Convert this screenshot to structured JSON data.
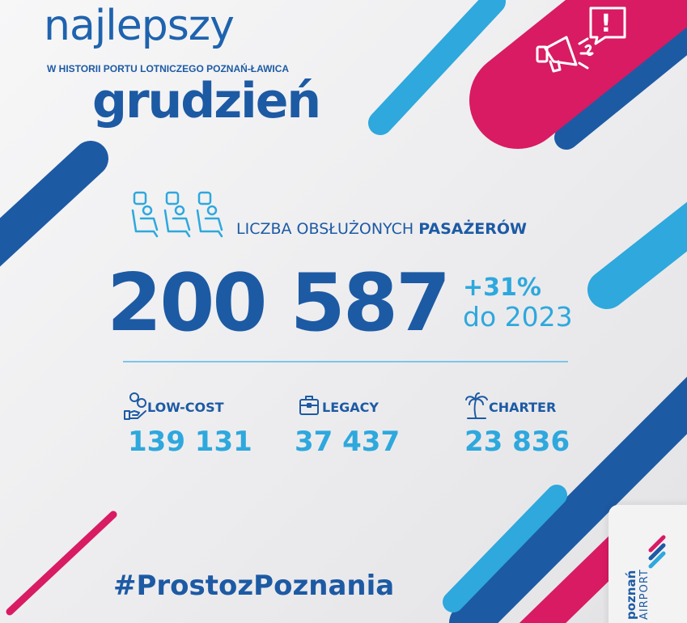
{
  "header": {
    "title": "najlepszy",
    "subtitle": "W HISTORII PORTU LOTNICZEGO POZNAŃ-ŁAWICA",
    "month": "grudzień"
  },
  "passengers": {
    "label_prefix": "LICZBA OBSŁUŻONYCH ",
    "label_emphasis": "PASAŻERÓW",
    "total": "200 587",
    "change": "+31%",
    "change_note": "do 2023",
    "icon": "airplane-seats-icon"
  },
  "categories": [
    {
      "label": "LOW-COST",
      "value": "139 131",
      "icon": "hand-coins-icon"
    },
    {
      "label": "LEGACY",
      "value": "37 437",
      "icon": "briefcase-icon"
    },
    {
      "label": "CHARTER",
      "value": "23 836",
      "icon": "palm-tree-icon"
    }
  ],
  "badge": {
    "icon": "megaphone-icon",
    "mark": "!"
  },
  "hashtag": "#ProstozPoznania",
  "logo": {
    "line1": "poznań",
    "line2": "AIRPORT"
  },
  "colors": {
    "dark_blue": "#1d5aa4",
    "light_blue": "#2ea8dd",
    "magenta": "#d81b63",
    "background": "#efeff1"
  }
}
